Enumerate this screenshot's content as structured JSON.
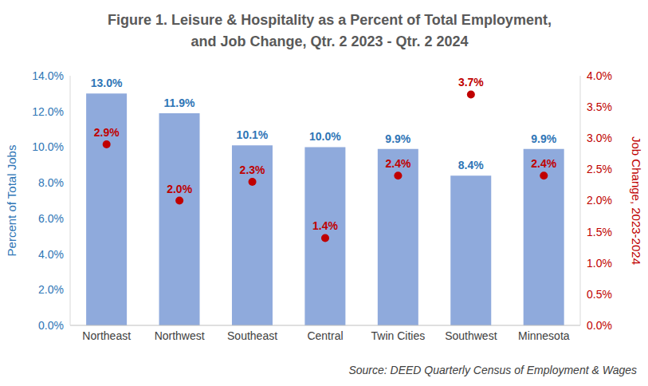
{
  "chart_data": {
    "type": "bar",
    "title": "Figure 1. Leisure & Hospitality as a Percent of Total Employment,\nand Job Change, Qtr. 2 2023 - Qtr. 2 2024",
    "categories": [
      "Northeast",
      "Northwest",
      "Southeast",
      "Central",
      "Twin Cities",
      "Southwest",
      "Minnesota"
    ],
    "series": [
      {
        "type": "bar",
        "color": "#8faadc",
        "values": [
          13.0,
          11.9,
          10.1,
          10.0,
          9.9,
          8.4,
          9.9
        ],
        "value_labels": [
          "13.0%",
          "11.9%",
          "10.1%",
          "10.0%",
          "9.9%",
          "8.4%",
          "9.9%"
        ]
      },
      {
        "type": "scatter",
        "axis": "y2",
        "marker": "circle",
        "color": "#c00000",
        "values": [
          2.9,
          2.0,
          2.3,
          1.4,
          2.4,
          3.7,
          2.4
        ],
        "value_labels": [
          "2.9%",
          "2.0%",
          "2.3%",
          "1.4%",
          "2.4%",
          "3.7%",
          "2.4%"
        ]
      }
    ],
    "y_label": "Percent of Total Jobs",
    "y2_label": "Job Change, 2023-2024",
    "ylim": [
      0,
      14
    ],
    "yticks": [
      {
        "value": 0,
        "label": "0.0%"
      },
      {
        "value": 2,
        "label": "2.0%"
      },
      {
        "value": 4,
        "label": "4.0%"
      },
      {
        "value": 6,
        "label": "6.0%"
      },
      {
        "value": 8,
        "label": "8.0%"
      },
      {
        "value": 10,
        "label": "10.0%"
      },
      {
        "value": 12,
        "label": "12.0%"
      },
      {
        "value": 14,
        "label": "14.0%"
      }
    ],
    "y2lim": [
      0,
      4
    ],
    "y2ticks": [
      {
        "value": 0,
        "label": "0.0%"
      },
      {
        "value": 0.5,
        "label": "0.5%"
      },
      {
        "value": 1,
        "label": "1.0%"
      },
      {
        "value": 1.5,
        "label": "1.5%"
      },
      {
        "value": 2,
        "label": "2.0%"
      },
      {
        "value": 2.5,
        "label": "2.5%"
      },
      {
        "value": 3,
        "label": "3.0%"
      },
      {
        "value": 3.5,
        "label": "3.5%"
      },
      {
        "value": 4,
        "label": "4.0%"
      }
    ],
    "grid": false,
    "data_labels": true,
    "source": "Source: DEED Quarterly Census of Employment & Wages"
  }
}
